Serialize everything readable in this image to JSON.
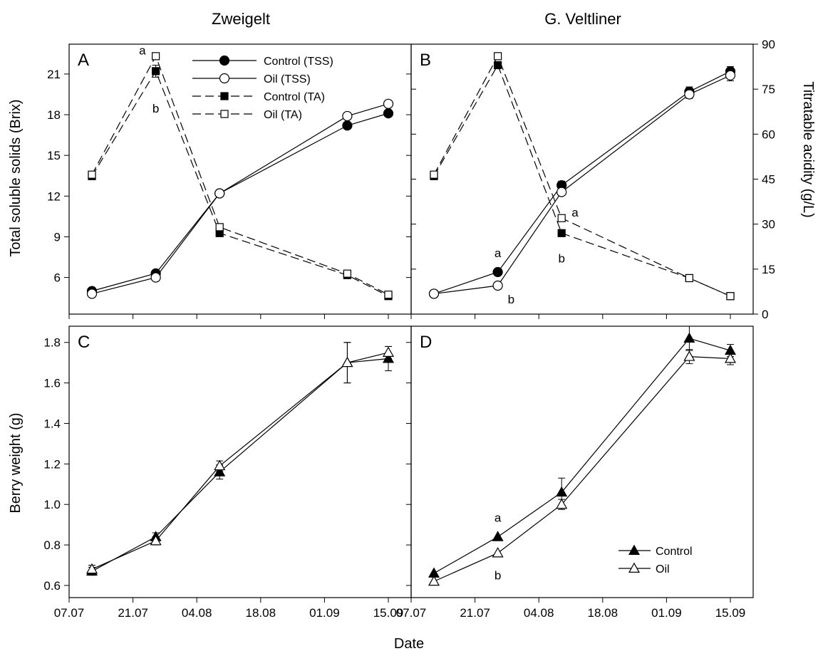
{
  "figure": {
    "column_titles": [
      "Zweigelt",
      "G. Veltliner"
    ],
    "xlabel": "Date",
    "ylabel_top_left": "Total soluble solids (Brix)",
    "ylabel_top_right": "Titratable acidity (g/L)",
    "ylabel_bottom_left": "Berry weight (g)"
  },
  "chart_data": [
    {
      "panel": "A",
      "type": "line",
      "x_ticks": [
        "07.07",
        "21.07",
        "04.08",
        "18.08",
        "01.09",
        "15.09"
      ],
      "x": [
        "12.07",
        "26.07",
        "09.08",
        "06.09",
        "15.09"
      ],
      "xlim": [
        "07.07",
        "20.09"
      ],
      "ylim": [
        3.3,
        23.2
      ],
      "yticks": [
        6,
        9,
        12,
        15,
        18,
        21
      ],
      "y2lim": [
        0,
        90
      ],
      "y2ticks": [
        0,
        15,
        30,
        45,
        60,
        75,
        90
      ],
      "series": [
        {
          "name": "Control (TSS)",
          "axis": "left",
          "marker": "circle",
          "filled": true,
          "dash": false,
          "values": [
            5.0,
            6.3,
            12.2,
            17.2,
            18.1
          ],
          "err": [
            0,
            0.1,
            0,
            0.15,
            0.15
          ]
        },
        {
          "name": "Oil (TSS)",
          "axis": "left",
          "marker": "circle",
          "filled": false,
          "dash": false,
          "values": [
            4.8,
            6.0,
            12.2,
            17.9,
            18.8
          ],
          "err": [
            0,
            0,
            0,
            0,
            0
          ]
        },
        {
          "name": "Control (TA)",
          "axis": "right",
          "marker": "square",
          "filled": true,
          "dash": true,
          "values": [
            46,
            81,
            27,
            13,
            6
          ],
          "err": [
            0,
            2,
            0,
            0,
            0
          ]
        },
        {
          "name": "Oil (TA)",
          "axis": "right",
          "marker": "square",
          "filled": false,
          "dash": true,
          "values": [
            46.5,
            86,
            29,
            13.5,
            6.5
          ],
          "err": [
            0,
            0,
            0,
            0,
            0
          ]
        }
      ],
      "legend": "top-center",
      "annotations": [
        {
          "text": "a",
          "x": "26.07",
          "y2": 88,
          "place": "left"
        },
        {
          "text": "b",
          "x": "26.07",
          "y2": 72,
          "place": "below"
        }
      ]
    },
    {
      "panel": "B",
      "type": "line",
      "x_ticks": [
        "07.07",
        "21.07",
        "04.08",
        "18.08",
        "01.09",
        "15.09"
      ],
      "x": [
        "12.07",
        "26.07",
        "09.08",
        "06.09",
        "15.09"
      ],
      "xlim": [
        "07.07",
        "20.09"
      ],
      "ylim": [
        3.3,
        23.2
      ],
      "y2lim": [
        0,
        90
      ],
      "y2ticks": [
        0,
        15,
        30,
        45,
        60,
        75,
        90
      ],
      "series": [
        {
          "name": "Control (TSS)",
          "axis": "left",
          "marker": "circle",
          "filled": true,
          "dash": false,
          "values": [
            4.8,
            6.4,
            12.8,
            19.7,
            21.2
          ],
          "err": [
            0,
            0,
            0.3,
            0.35,
            0.35
          ]
        },
        {
          "name": "Oil (TSS)",
          "axis": "left",
          "marker": "circle",
          "filled": false,
          "dash": false,
          "values": [
            4.8,
            5.4,
            12.3,
            19.5,
            20.9
          ],
          "err": [
            0,
            0,
            0,
            0.3,
            0.4
          ]
        },
        {
          "name": "Control (TA)",
          "axis": "right",
          "marker": "square",
          "filled": true,
          "dash": true,
          "values": [
            46,
            83,
            27,
            12,
            6
          ],
          "err": [
            0,
            0,
            0,
            0,
            0
          ]
        },
        {
          "name": "Oil (TA)",
          "axis": "right",
          "marker": "square",
          "filled": false,
          "dash": true,
          "values": [
            46.5,
            86,
            32,
            12,
            6
          ],
          "err": [
            0,
            0,
            0,
            0,
            0
          ]
        }
      ],
      "annotations": [
        {
          "text": "a",
          "x": "26.07",
          "y": 7.3,
          "place": "above"
        },
        {
          "text": "b",
          "x": "26.07",
          "y": 4.4,
          "place": "right"
        },
        {
          "text": "a",
          "x": "09.08",
          "y2": 34,
          "place": "right"
        },
        {
          "text": "b",
          "x": "09.08",
          "y2": 22,
          "place": "below"
        }
      ]
    },
    {
      "panel": "C",
      "type": "line",
      "x_ticks": [
        "07.07",
        "21.07",
        "04.08",
        "18.08",
        "01.09",
        "15.09"
      ],
      "x": [
        "12.07",
        "26.07",
        "09.08",
        "06.09",
        "15.09"
      ],
      "xlim": [
        "07.07",
        "20.09"
      ],
      "ylim": [
        0.54,
        1.88
      ],
      "yticks": [
        0.6,
        0.8,
        1.0,
        1.2,
        1.4,
        1.6,
        1.8
      ],
      "series": [
        {
          "name": "Control",
          "marker": "triangle",
          "filled": true,
          "values": [
            0.67,
            0.84,
            1.16,
            1.7,
            1.72
          ],
          "err": [
            0.02,
            0.02,
            0.035,
            0.1,
            0.06
          ]
        },
        {
          "name": "Oil",
          "marker": "triangle",
          "filled": false,
          "values": [
            0.68,
            0.82,
            1.19,
            1.7,
            1.75
          ],
          "err": [
            0.02,
            0.02,
            0.025,
            0.1,
            0.03
          ]
        }
      ]
    },
    {
      "panel": "D",
      "type": "line",
      "x_ticks": [
        "07.07",
        "21.07",
        "04.08",
        "18.08",
        "01.09",
        "15.09"
      ],
      "x": [
        "12.07",
        "26.07",
        "09.08",
        "06.09",
        "15.09"
      ],
      "xlim": [
        "07.07",
        "20.09"
      ],
      "ylim": [
        0.54,
        1.88
      ],
      "series": [
        {
          "name": "Control",
          "marker": "triangle",
          "filled": true,
          "values": [
            0.66,
            0.84,
            1.06,
            1.82,
            1.76
          ],
          "err": [
            0,
            0,
            0.07,
            0.06,
            0.03
          ]
        },
        {
          "name": "Oil",
          "marker": "triangle",
          "filled": false,
          "values": [
            0.62,
            0.76,
            1.0,
            1.73,
            1.72
          ],
          "err": [
            0,
            0,
            0.025,
            0.035,
            0.03
          ]
        }
      ],
      "legend": "bottom-right",
      "annotations": [
        {
          "text": "a",
          "x": "26.07",
          "y": 0.9,
          "place": "above"
        },
        {
          "text": "b",
          "x": "26.07",
          "y": 0.7,
          "place": "below"
        }
      ]
    }
  ]
}
